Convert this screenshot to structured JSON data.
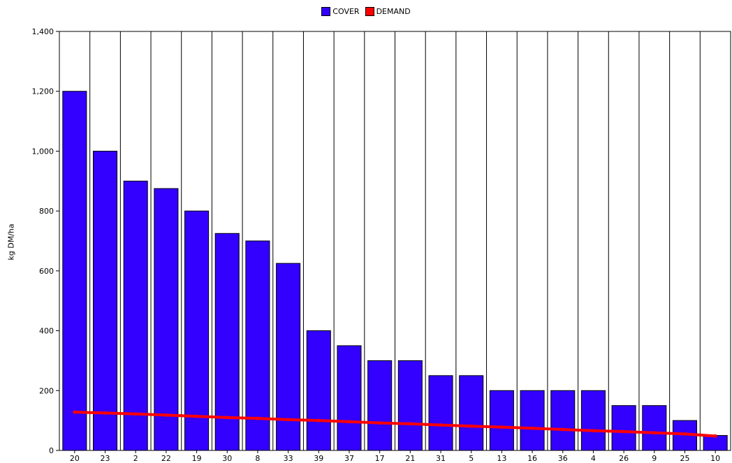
{
  "chart_data": {
    "type": "bar",
    "title": "",
    "xlabel": "",
    "ylabel": "kg DM/ha",
    "ylim": [
      0,
      1400
    ],
    "yticks": [
      0,
      200,
      400,
      600,
      800,
      1000,
      1200,
      1400
    ],
    "ytick_labels": [
      "0",
      "200",
      "400",
      "600",
      "800",
      "1,000",
      "1,200",
      "1,400"
    ],
    "legend_position": "top-center",
    "grid": "vertical-category-lines",
    "categories": [
      "20",
      "23",
      "2",
      "22",
      "19",
      "30",
      "8",
      "33",
      "39",
      "37",
      "17",
      "21",
      "31",
      "5",
      "13",
      "16",
      "36",
      "4",
      "26",
      "9",
      "25",
      "10"
    ],
    "series": [
      {
        "name": "COVER",
        "type": "bar",
        "color": "#3300ff",
        "values": [
          1200,
          1000,
          900,
          875,
          800,
          725,
          700,
          625,
          400,
          350,
          300,
          300,
          250,
          250,
          200,
          200,
          200,
          200,
          150,
          150,
          100,
          50
        ]
      },
      {
        "name": "DEMAND",
        "type": "line",
        "color": "#ff0000",
        "values": [
          128,
          125,
          122,
          118,
          114,
          110,
          107,
          103,
          100,
          96,
          92,
          89,
          85,
          81,
          78,
          74,
          70,
          66,
          63,
          59,
          55,
          48
        ]
      }
    ]
  }
}
